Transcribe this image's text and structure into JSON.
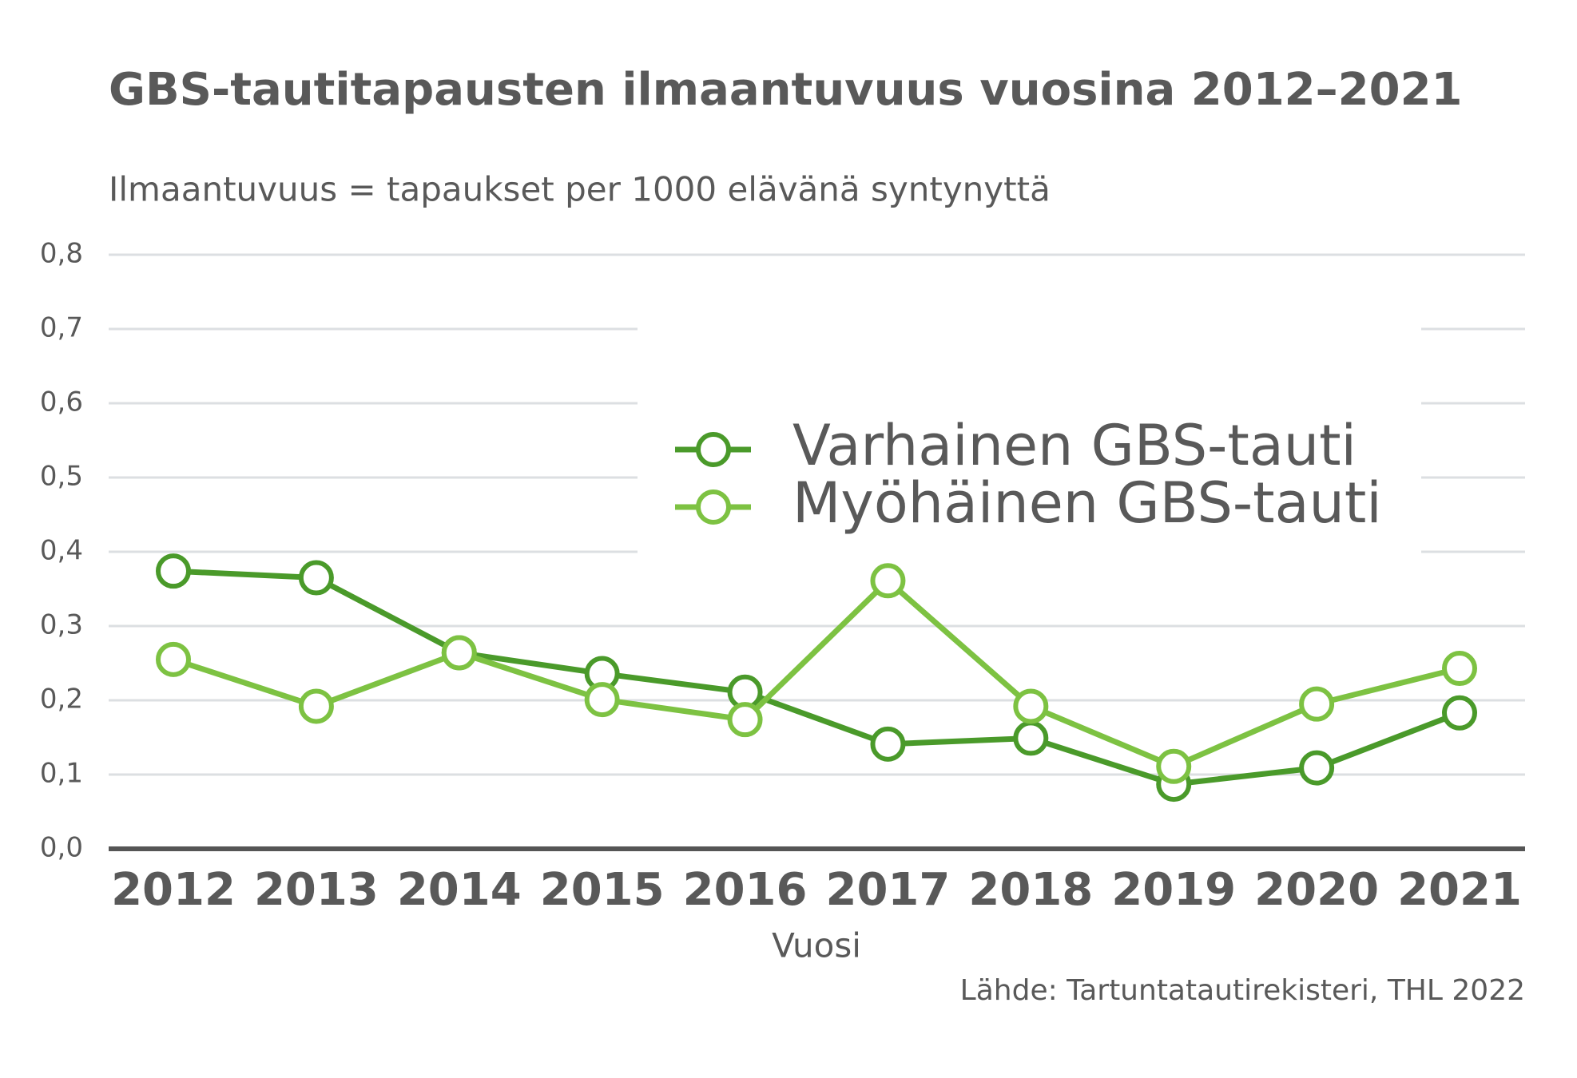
{
  "chart_data": {
    "type": "line",
    "title": "GBS-tautitapausten ilmaantuvuus vuosina 2012–2021",
    "subtitle": "Ilmaantuvuus = tapaukset per 1000 elävänä syntynyttä",
    "x_label": "Vuosi",
    "source": "Lähde: Tartuntatautirekisteri, THL 2022",
    "categories": [
      "2012",
      "2013",
      "2014",
      "2015",
      "2016",
      "2017",
      "2018",
      "2019",
      "2020",
      "2021"
    ],
    "series": [
      {
        "name": "Varhainen GBS-tauti",
        "color": "#4a9a2a",
        "values": [
          0.374,
          0.365,
          0.264,
          0.236,
          0.211,
          0.141,
          0.149,
          0.087,
          0.109,
          0.183
        ]
      },
      {
        "name": "Myöhäinen GBS-tauti",
        "color": "#7dc242",
        "values": [
          0.255,
          0.192,
          0.264,
          0.201,
          0.174,
          0.361,
          0.192,
          0.111,
          0.195,
          0.243
        ]
      }
    ],
    "ylim": [
      0,
      0.8
    ],
    "yticks": [
      {
        "value": 0,
        "label": "0,0"
      },
      {
        "value": 0.1,
        "label": "0,1"
      },
      {
        "value": 0.2,
        "label": "0,2"
      },
      {
        "value": 0.3,
        "label": "0,3"
      },
      {
        "value": 0.4,
        "label": "0,4"
      },
      {
        "value": 0.5,
        "label": "0,5"
      },
      {
        "value": 0.6,
        "label": "0,6"
      },
      {
        "value": 0.7,
        "label": "0,7"
      },
      {
        "value": 0.8,
        "label": "0,8"
      }
    ],
    "grid": true
  }
}
